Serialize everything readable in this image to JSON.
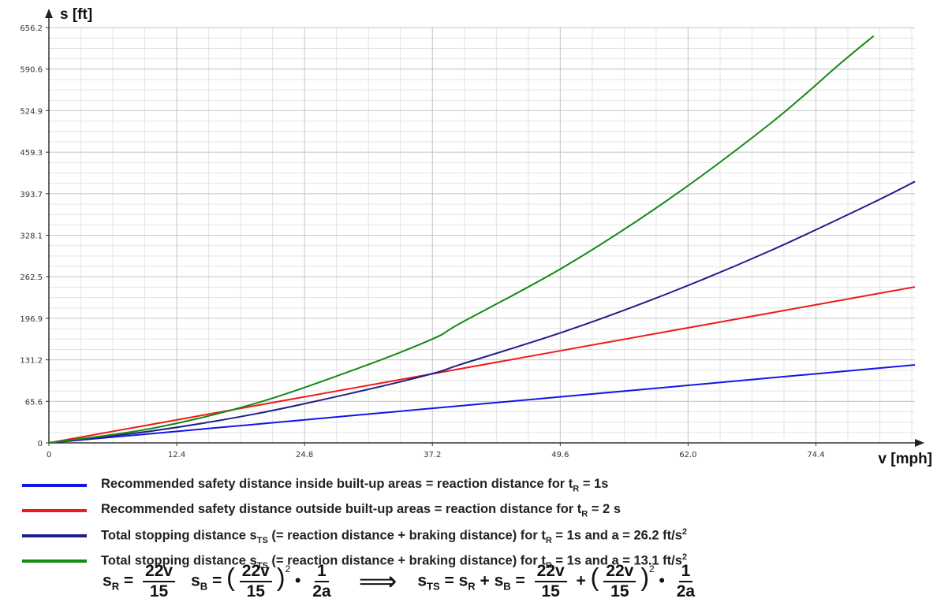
{
  "chart_data": {
    "type": "line",
    "xlabel": "v [mph]",
    "ylabel": "s [ft]",
    "xlim": [
      0,
      84
    ],
    "ylim": [
      0,
      656.2
    ],
    "x_ticks": [
      0,
      12.4,
      24.8,
      37.2,
      49.6,
      62.0,
      74.4
    ],
    "x_tick_labels": [
      "0",
      "12.4",
      "24.8",
      "37.2",
      "49.6",
      "62.0",
      "74.4"
    ],
    "y_ticks": [
      0,
      65.6,
      131.2,
      196.9,
      262.5,
      328.1,
      393.7,
      459.3,
      524.9,
      590.6,
      656.2
    ],
    "y_tick_labels": [
      "0",
      "65.6",
      "131.2",
      "196.9",
      "262.5",
      "328.1",
      "393.7",
      "459.3",
      "524.9",
      "590.6",
      "656.2"
    ],
    "grid": true,
    "series": [
      {
        "color": "#1515e8",
        "x": [
          0,
          10,
          20,
          30,
          37.2,
          40,
          50,
          60,
          70,
          80,
          84
        ],
        "y": [
          0,
          14.7,
          29.3,
          44,
          54.6,
          58.7,
          73.3,
          88,
          102.7,
          117.3,
          123.2
        ]
      },
      {
        "color": "#ee1a1a",
        "x": [
          0,
          10,
          20,
          30,
          37.2,
          40,
          50,
          60,
          70,
          80,
          84
        ],
        "y": [
          0,
          29.3,
          58.7,
          88,
          109.1,
          117.3,
          146.7,
          176,
          205.3,
          234.7,
          246.4
        ]
      },
      {
        "color": "#1f1f8a",
        "x": [
          0,
          10,
          20,
          30,
          37.2,
          40,
          50,
          60,
          70,
          80,
          84
        ],
        "y": [
          0,
          18.8,
          45.7,
          80.9,
          109.4,
          124.3,
          175.9,
          235.8,
          303.8,
          380.1,
          413
        ]
      },
      {
        "color": "#138a13",
        "x": [
          0,
          10,
          20,
          30,
          37.2,
          40,
          50,
          60,
          70,
          76.8,
          80
        ],
        "y": [
          0,
          22.9,
          62.2,
          117.9,
          164.1,
          189.9,
          278.5,
          383.5,
          504.9,
          600,
          643
        ]
      }
    ]
  },
  "legend": {
    "items": [
      {
        "color": "#1515e8",
        "text": "Recommended safety distance inside built-up areas = reaction distance for t",
        "sub": "R",
        "tail": " = 1s",
        "sup": ""
      },
      {
        "color": "#ee1a1a",
        "text": "Recommended safety distance outside built-up areas  = reaction distance for t",
        "sub": "R",
        "tail": " = 2 s",
        "sup": ""
      },
      {
        "color": "#1f1f8a",
        "text": "Total stopping distance s",
        "sub": "TS",
        "mid": " (= reaction distance + braking distance) for t",
        "sub2": "R",
        "tail": " = 1s and a = 26.2 ft/s",
        "sup": "2"
      },
      {
        "color": "#138a13",
        "text": "Total stopping distance s",
        "sub": "TS",
        "mid": " (= reaction distance + braking distance) for t",
        "sub2": "R",
        "tail": " = 1s and a = 13.1 ft/s",
        "sup": "2"
      }
    ]
  },
  "formula": {
    "sR": "s",
    "sR_sub": "R",
    "eq": "=",
    "f1_num": "22v",
    "f1_den": "15",
    "sB": "s",
    "sB_sub": "B",
    "lp": "(",
    "rp": ")",
    "sq": "2",
    "dot": "•",
    "one": "1",
    "twoa": "2a",
    "arrow": "⟹",
    "sTS": "s",
    "sTS_sub": "TS",
    "plus": "+"
  }
}
